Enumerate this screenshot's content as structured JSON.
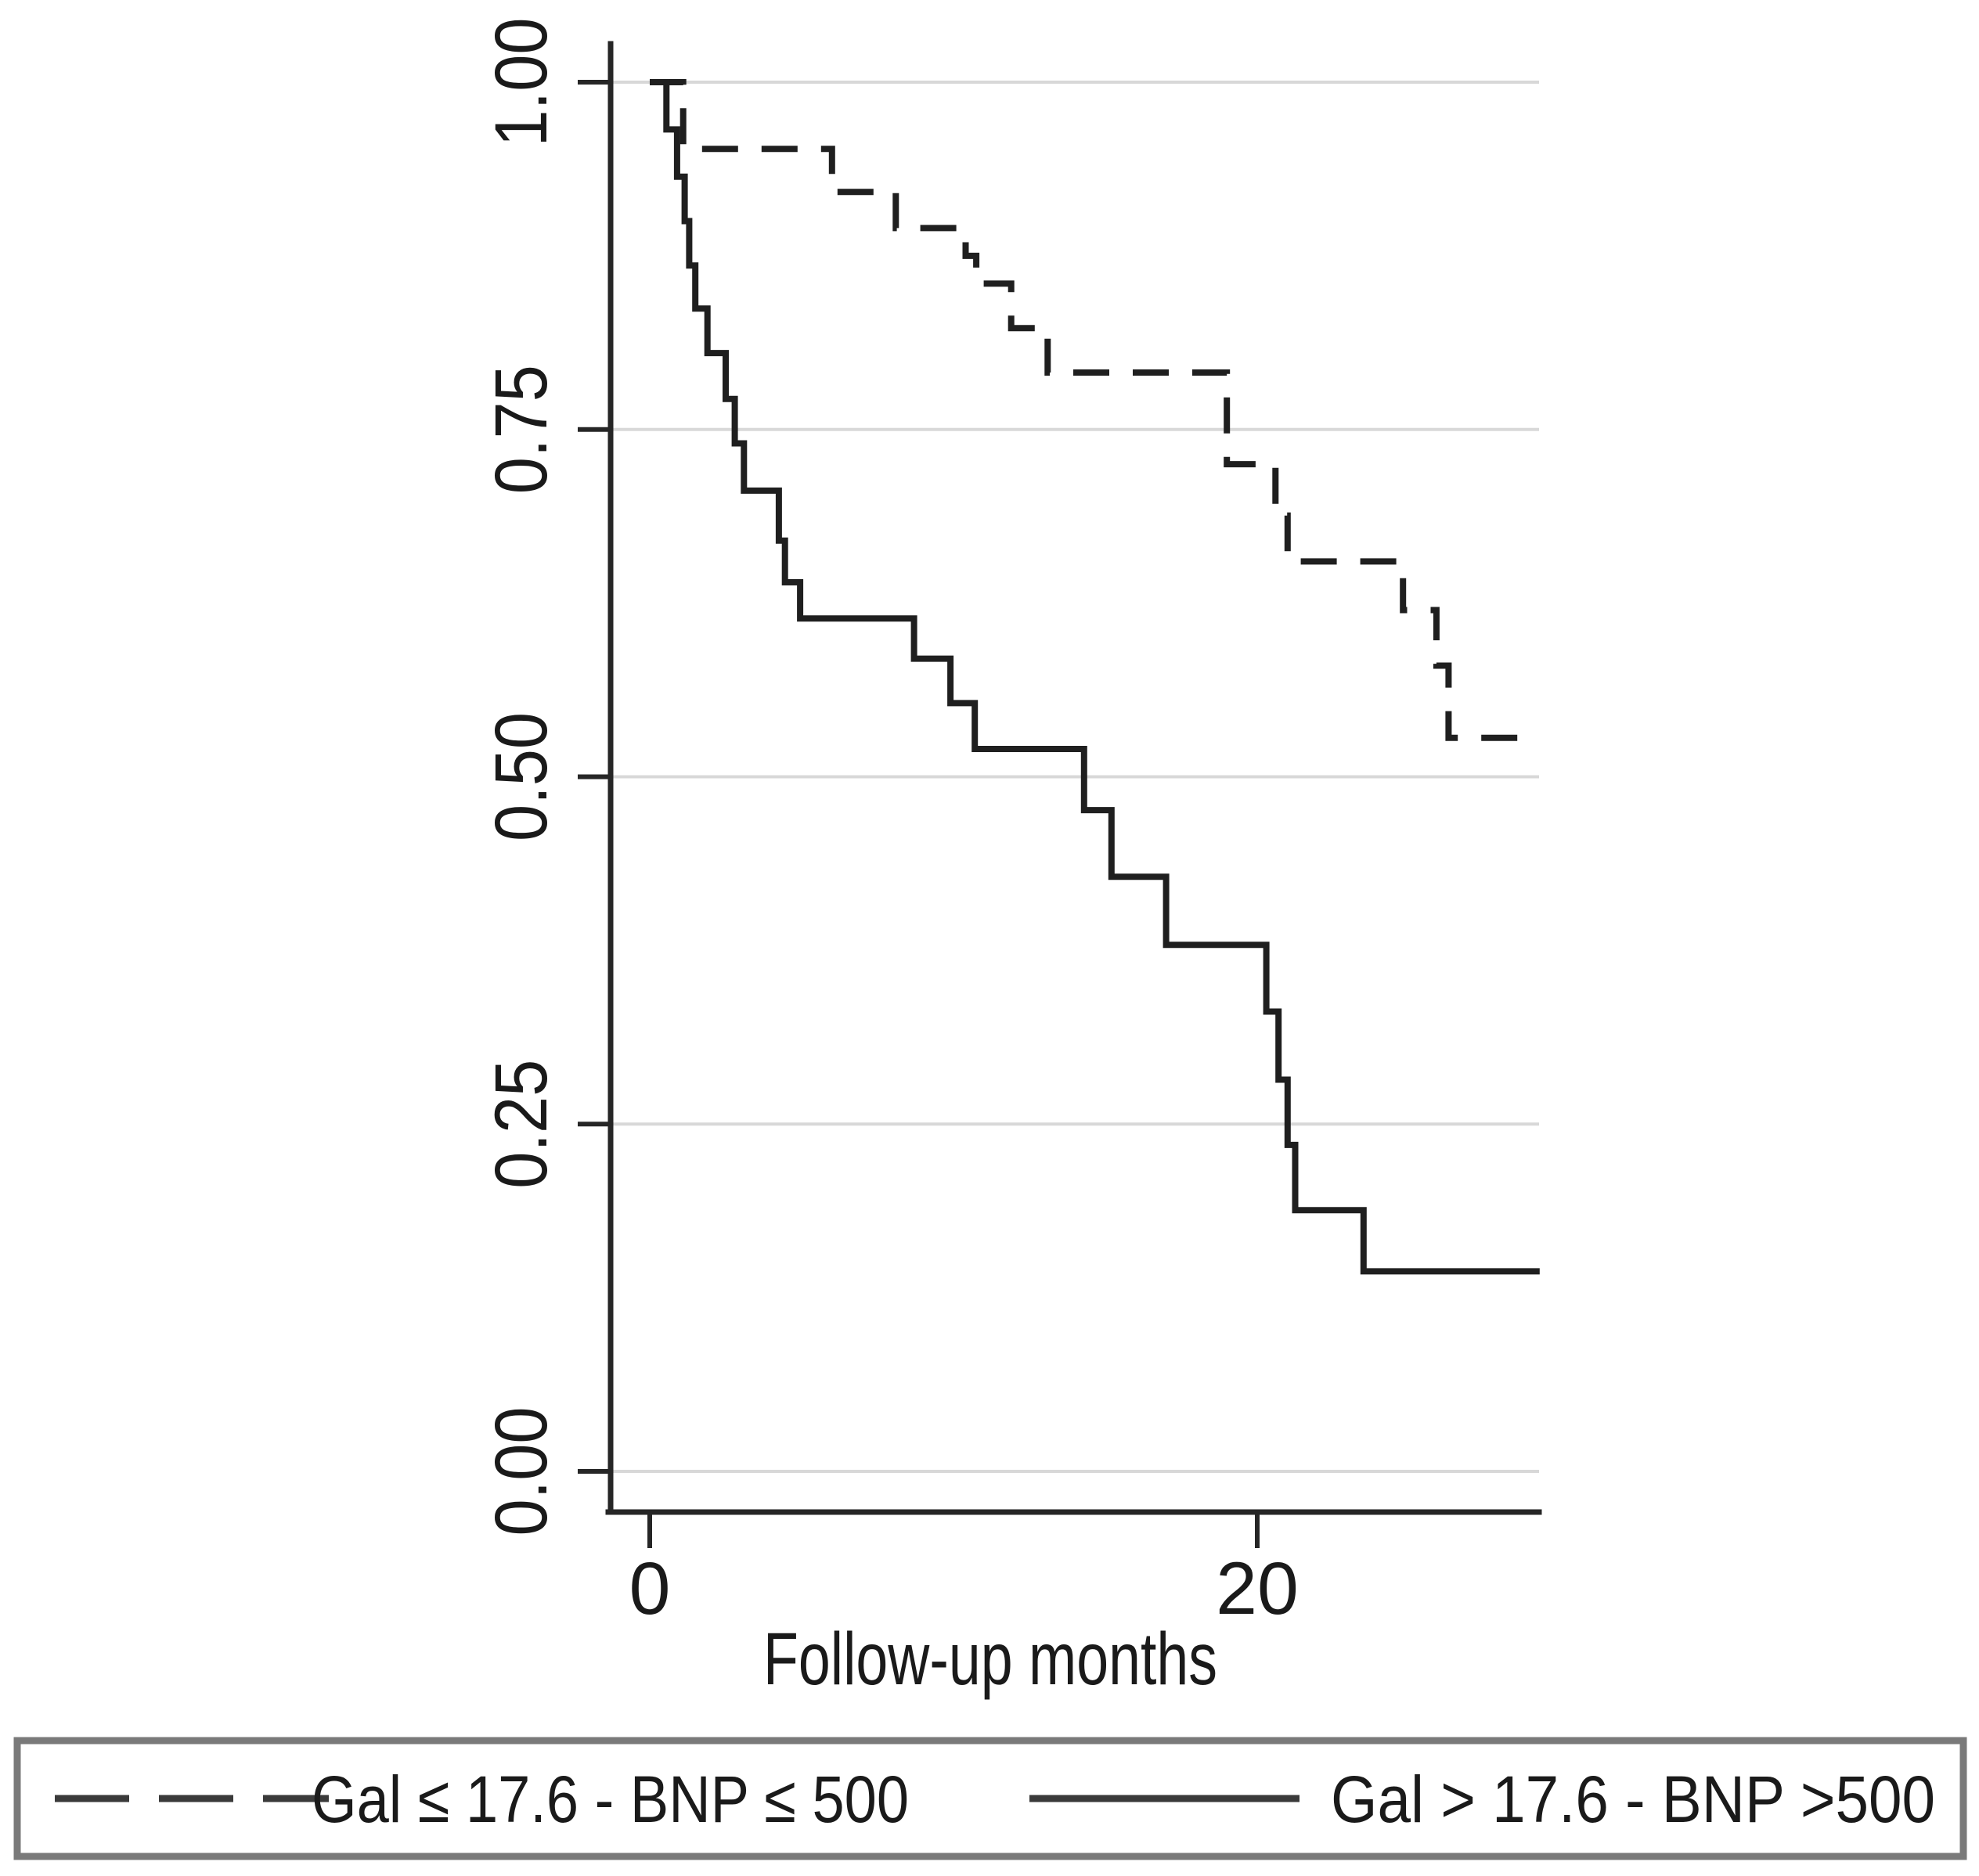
{
  "figure": {
    "kind": "Kaplan-Meier survival plot",
    "background": "#ffffff"
  },
  "chart_data": {
    "type": "line",
    "step": true,
    "title": "",
    "xlabel": "Follow-up months",
    "ylabel": "",
    "xlim": [
      -1.6,
      29.3
    ],
    "ylim": [
      -0.03,
      1.035
    ],
    "grid": "horizontal",
    "legend_position": "bottom-boxed",
    "xticks": [
      {
        "v": 0,
        "label": "0"
      },
      {
        "v": 20,
        "label": "20"
      }
    ],
    "yticks": [
      {
        "v": 0.0,
        "label": "0.00"
      },
      {
        "v": 0.25,
        "label": "0.25"
      },
      {
        "v": 0.5,
        "label": "0.50"
      },
      {
        "v": 0.75,
        "label": "0.75"
      },
      {
        "v": 1.0,
        "label": "1.00"
      }
    ],
    "series": [
      {
        "name": "Gal ≤ 17.6 - BNP ≤ 500",
        "line_style": "dashed",
        "color": "#1f1f1f",
        "points": [
          [
            0,
            1.0
          ],
          [
            1.1,
            1.0
          ],
          [
            1.1,
            0.952
          ],
          [
            6.0,
            0.952
          ],
          [
            6.0,
            0.921
          ],
          [
            8.1,
            0.921
          ],
          [
            8.1,
            0.895
          ],
          [
            10.4,
            0.895
          ],
          [
            10.4,
            0.875
          ],
          [
            10.75,
            0.875
          ],
          [
            10.75,
            0.855
          ],
          [
            11.9,
            0.855
          ],
          [
            11.9,
            0.823
          ],
          [
            13.1,
            0.823
          ],
          [
            13.1,
            0.791
          ],
          [
            19.0,
            0.791
          ],
          [
            19.0,
            0.725
          ],
          [
            20.6,
            0.725
          ],
          [
            20.6,
            0.688
          ],
          [
            21.0,
            0.688
          ],
          [
            21.0,
            0.655
          ],
          [
            24.8,
            0.655
          ],
          [
            24.8,
            0.62
          ],
          [
            25.9,
            0.62
          ],
          [
            25.9,
            0.58
          ],
          [
            26.3,
            0.58
          ],
          [
            26.3,
            0.528
          ],
          [
            29.3,
            0.528
          ]
        ]
      },
      {
        "name": "Gal > 17.6 - BNP >500",
        "line_style": "solid",
        "color": "#1f1f1f",
        "points": [
          [
            0,
            1.0
          ],
          [
            0.55,
            1.0
          ],
          [
            0.55,
            0.966
          ],
          [
            0.9,
            0.966
          ],
          [
            0.9,
            0.932
          ],
          [
            1.15,
            0.932
          ],
          [
            1.15,
            0.9
          ],
          [
            1.3,
            0.9
          ],
          [
            1.3,
            0.868
          ],
          [
            1.5,
            0.868
          ],
          [
            1.5,
            0.837
          ],
          [
            1.9,
            0.837
          ],
          [
            1.9,
            0.805
          ],
          [
            2.5,
            0.805
          ],
          [
            2.5,
            0.772
          ],
          [
            2.8,
            0.772
          ],
          [
            2.8,
            0.74
          ],
          [
            3.1,
            0.74
          ],
          [
            3.1,
            0.706
          ],
          [
            4.25,
            0.706
          ],
          [
            4.25,
            0.67
          ],
          [
            4.45,
            0.67
          ],
          [
            4.45,
            0.64
          ],
          [
            4.95,
            0.64
          ],
          [
            4.95,
            0.614
          ],
          [
            8.7,
            0.614
          ],
          [
            8.7,
            0.585
          ],
          [
            9.9,
            0.585
          ],
          [
            9.9,
            0.553
          ],
          [
            10.7,
            0.553
          ],
          [
            10.7,
            0.52
          ],
          [
            14.3,
            0.52
          ],
          [
            14.3,
            0.476
          ],
          [
            15.2,
            0.476
          ],
          [
            15.2,
            0.428
          ],
          [
            17.0,
            0.428
          ],
          [
            17.0,
            0.379
          ],
          [
            20.3,
            0.379
          ],
          [
            20.3,
            0.331
          ],
          [
            20.7,
            0.331
          ],
          [
            20.7,
            0.282
          ],
          [
            21.0,
            0.282
          ],
          [
            21.0,
            0.235
          ],
          [
            21.25,
            0.235
          ],
          [
            21.25,
            0.188
          ],
          [
            23.5,
            0.188
          ],
          [
            23.5,
            0.144
          ],
          [
            29.3,
            0.144
          ]
        ]
      }
    ]
  },
  "legend": {
    "items": [
      {
        "label": "Gal ≤ 17.6 - BNP ≤ 500",
        "sample": "dashed-line"
      },
      {
        "label": "Gal > 17.6 - BNP >500",
        "sample": "solid-line"
      }
    ]
  },
  "colors": {
    "curve": "#1f1f1f",
    "gridline": "#d8d8d8",
    "axis": "#262626",
    "legend_border": "#7a7a7a",
    "text": "#1a1a1a",
    "background": "#ffffff"
  }
}
